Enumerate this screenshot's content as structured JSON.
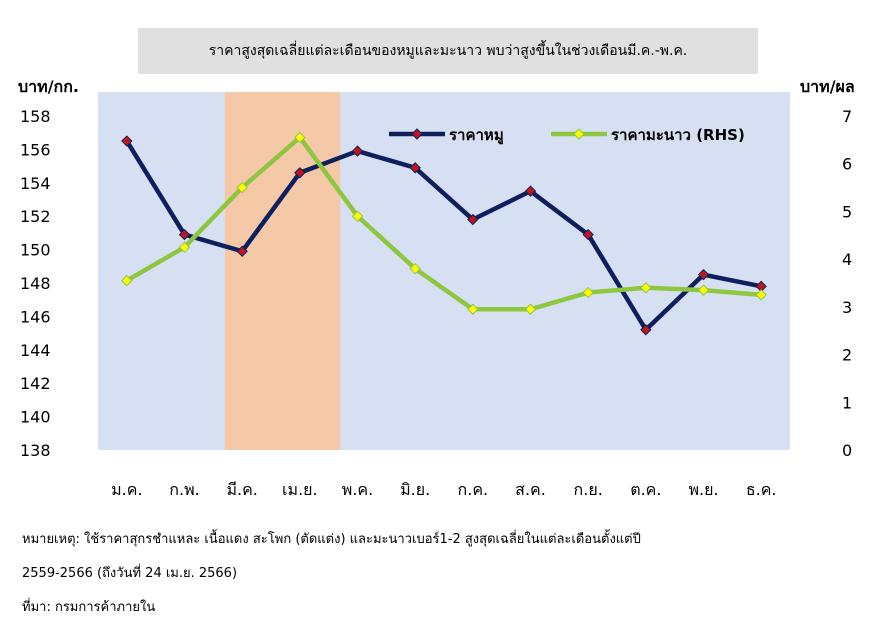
{
  "title": "ราคาสูงสุดเฉลี่ยแต่ละเดือนของหมูและมะนาว พบว่าสูงขึ้นในช่วงเดือนมี.ค.-พ.ค.",
  "notes": {
    "line1": "หมายเหตุ: ใช้ราคาสุกรชำแหละ เนื้อแดง สะโพก (ตัดแต่ง) และมะนาวเบอร์1-2 สูงสุดเฉลี่ยในแต่ละเดือนตั้งแต่ปี",
    "line2": "2559-2566 (ถึงวันที่ 24 เม.ย. 2566)",
    "line3": "ที่มา: กรมการค้าภายใน"
  },
  "chart_data": {
    "type": "line",
    "categories": [
      "ม.ค.",
      "ก.พ.",
      "มี.ค.",
      "เม.ย.",
      "พ.ค.",
      "มิ.ย.",
      "ก.ค.",
      "ส.ค.",
      "ก.ย.",
      "ต.ค.",
      "พ.ย.",
      "ธ.ค."
    ],
    "ylabel_left": "บาท/กก.",
    "ylabel_right": "บาท/ผล",
    "ylim_left": [
      138,
      158
    ],
    "ylim_right": [
      0,
      7
    ],
    "yticks_left": [
      138,
      140,
      142,
      144,
      146,
      148,
      150,
      152,
      154,
      156,
      158
    ],
    "yticks_right": [
      0,
      1,
      2,
      3,
      4,
      5,
      6,
      7
    ],
    "highlight_months": [
      "มี.ค.",
      "เม.ย."
    ],
    "legend_position": "top-right",
    "series": [
      {
        "name": "ราคาหมู",
        "axis": "left",
        "color": "#0d1f5c",
        "marker_color": "#c0141e",
        "values": [
          156.5,
          150.9,
          149.9,
          154.6,
          155.9,
          154.9,
          151.8,
          153.5,
          150.9,
          145.2,
          148.5,
          147.8
        ]
      },
      {
        "name": "ราคามะนาว (RHS)",
        "axis": "right",
        "color": "#8dc63f",
        "marker_color": "#ffff00",
        "values": [
          3.55,
          4.25,
          5.5,
          6.55,
          4.9,
          3.8,
          2.95,
          2.95,
          3.3,
          3.4,
          3.35,
          3.25
        ]
      }
    ]
  },
  "colors": {
    "plot_background": "#d6e0f2",
    "highlight": "#f5c8a8",
    "title_box": "#e0e0e0"
  }
}
